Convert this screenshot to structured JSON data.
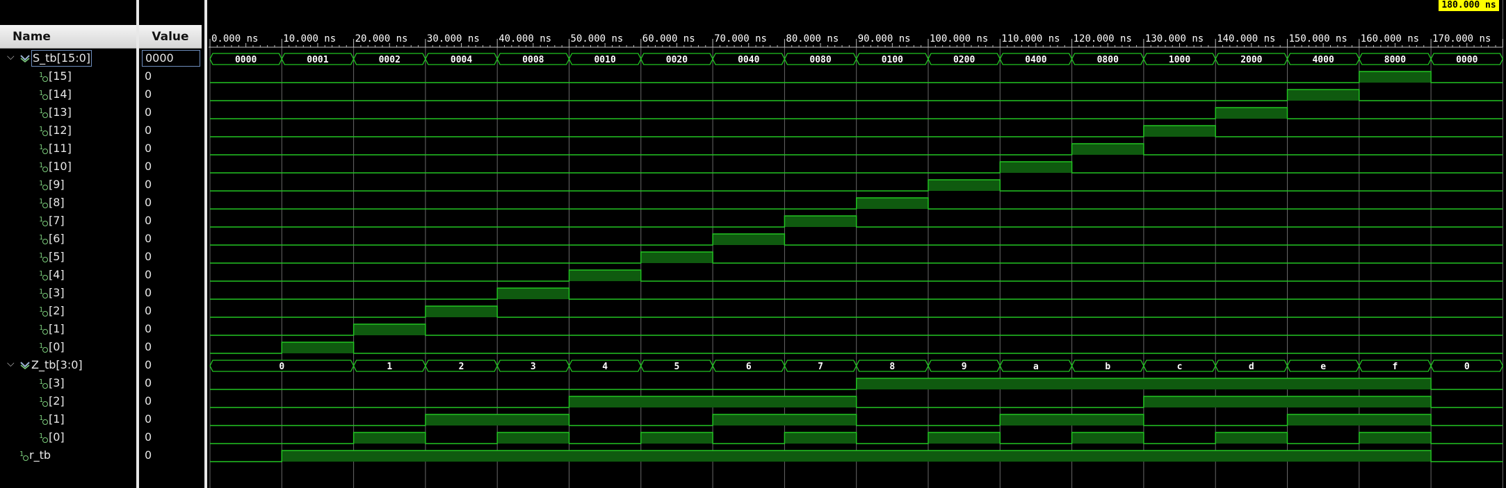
{
  "header": {
    "name_col": "Name",
    "value_col": "Value"
  },
  "cursor": {
    "time_label": "180.000 ns",
    "time": 180
  },
  "timeline": {
    "unit": "ns",
    "ticks": [
      "0.000 ns",
      "10.000 ns",
      "20.000 ns",
      "30.000 ns",
      "40.000 ns",
      "50.000 ns",
      "60.000 ns",
      "70.000 ns",
      "80.000 ns",
      "90.000 ns",
      "100.000 ns",
      "110.000 ns",
      "120.000 ns",
      "130.000 ns",
      "140.000 ns",
      "150.000 ns",
      "160.000 ns",
      "170.000 ns"
    ],
    "tick_times": [
      0,
      10,
      20,
      30,
      40,
      50,
      60,
      70,
      80,
      90,
      100,
      110,
      120,
      130,
      140,
      150,
      160,
      170
    ]
  },
  "colors": {
    "wave": "#22c622",
    "wave_fill": "#0f5a0f",
    "grid": "#bfbfbf",
    "bus_text": "#ffffff",
    "cursor": "#ffff00"
  },
  "signals": [
    {
      "id": "S_tb",
      "label": "S_tb[15:0]",
      "type": "bus",
      "value": "0000",
      "expanded": true,
      "indent": 0,
      "icon": "bus-icon",
      "segments": [
        {
          "start": 0,
          "end": 10,
          "text": "0000"
        },
        {
          "start": 10,
          "end": 20,
          "text": "0001"
        },
        {
          "start": 20,
          "end": 30,
          "text": "0002"
        },
        {
          "start": 30,
          "end": 40,
          "text": "0004"
        },
        {
          "start": 40,
          "end": 50,
          "text": "0008"
        },
        {
          "start": 50,
          "end": 60,
          "text": "0010"
        },
        {
          "start": 60,
          "end": 70,
          "text": "0020"
        },
        {
          "start": 70,
          "end": 80,
          "text": "0040"
        },
        {
          "start": 80,
          "end": 90,
          "text": "0080"
        },
        {
          "start": 90,
          "end": 100,
          "text": "0100"
        },
        {
          "start": 100,
          "end": 110,
          "text": "0200"
        },
        {
          "start": 110,
          "end": 120,
          "text": "0400"
        },
        {
          "start": 120,
          "end": 130,
          "text": "0800"
        },
        {
          "start": 130,
          "end": 140,
          "text": "1000"
        },
        {
          "start": 140,
          "end": 150,
          "text": "2000"
        },
        {
          "start": 150,
          "end": 160,
          "text": "4000"
        },
        {
          "start": 160,
          "end": 170,
          "text": "8000"
        },
        {
          "start": 170,
          "end": 180,
          "text": "0000"
        }
      ]
    },
    {
      "label": "[15]",
      "type": "bit",
      "value": "0",
      "indent": 1,
      "icon": "bit-icon",
      "high": [
        [
          160,
          170
        ]
      ]
    },
    {
      "label": "[14]",
      "type": "bit",
      "value": "0",
      "indent": 1,
      "icon": "bit-icon",
      "high": [
        [
          150,
          160
        ]
      ]
    },
    {
      "label": "[13]",
      "type": "bit",
      "value": "0",
      "indent": 1,
      "icon": "bit-icon",
      "high": [
        [
          140,
          150
        ]
      ]
    },
    {
      "label": "[12]",
      "type": "bit",
      "value": "0",
      "indent": 1,
      "icon": "bit-icon",
      "high": [
        [
          130,
          140
        ]
      ]
    },
    {
      "label": "[11]",
      "type": "bit",
      "value": "0",
      "indent": 1,
      "icon": "bit-icon",
      "high": [
        [
          120,
          130
        ]
      ]
    },
    {
      "label": "[10]",
      "type": "bit",
      "value": "0",
      "indent": 1,
      "icon": "bit-icon",
      "high": [
        [
          110,
          120
        ]
      ]
    },
    {
      "label": "[9]",
      "type": "bit",
      "value": "0",
      "indent": 1,
      "icon": "bit-icon",
      "high": [
        [
          100,
          110
        ]
      ]
    },
    {
      "label": "[8]",
      "type": "bit",
      "value": "0",
      "indent": 1,
      "icon": "bit-icon",
      "high": [
        [
          90,
          100
        ]
      ]
    },
    {
      "label": "[7]",
      "type": "bit",
      "value": "0",
      "indent": 1,
      "icon": "bit-icon",
      "high": [
        [
          80,
          90
        ]
      ]
    },
    {
      "label": "[6]",
      "type": "bit",
      "value": "0",
      "indent": 1,
      "icon": "bit-icon",
      "high": [
        [
          70,
          80
        ]
      ]
    },
    {
      "label": "[5]",
      "type": "bit",
      "value": "0",
      "indent": 1,
      "icon": "bit-icon",
      "high": [
        [
          60,
          70
        ]
      ]
    },
    {
      "label": "[4]",
      "type": "bit",
      "value": "0",
      "indent": 1,
      "icon": "bit-icon",
      "high": [
        [
          50,
          60
        ]
      ]
    },
    {
      "label": "[3]",
      "type": "bit",
      "value": "0",
      "indent": 1,
      "icon": "bit-icon",
      "high": [
        [
          40,
          50
        ]
      ]
    },
    {
      "label": "[2]",
      "type": "bit",
      "value": "0",
      "indent": 1,
      "icon": "bit-icon",
      "high": [
        [
          30,
          40
        ]
      ]
    },
    {
      "label": "[1]",
      "type": "bit",
      "value": "0",
      "indent": 1,
      "icon": "bit-icon",
      "high": [
        [
          20,
          30
        ]
      ]
    },
    {
      "label": "[0]",
      "type": "bit",
      "value": "0",
      "indent": 1,
      "icon": "bit-icon",
      "high": [
        [
          10,
          20
        ]
      ]
    },
    {
      "id": "Z_tb",
      "label": "Z_tb[3:0]",
      "type": "bus",
      "value": "0",
      "expanded": true,
      "indent": 0,
      "icon": "bus-icon",
      "segments": [
        {
          "start": 0,
          "end": 20,
          "text": "0"
        },
        {
          "start": 20,
          "end": 30,
          "text": "1"
        },
        {
          "start": 30,
          "end": 40,
          "text": "2"
        },
        {
          "start": 40,
          "end": 50,
          "text": "3"
        },
        {
          "start": 50,
          "end": 60,
          "text": "4"
        },
        {
          "start": 60,
          "end": 70,
          "text": "5"
        },
        {
          "start": 70,
          "end": 80,
          "text": "6"
        },
        {
          "start": 80,
          "end": 90,
          "text": "7"
        },
        {
          "start": 90,
          "end": 100,
          "text": "8"
        },
        {
          "start": 100,
          "end": 110,
          "text": "9"
        },
        {
          "start": 110,
          "end": 120,
          "text": "a"
        },
        {
          "start": 120,
          "end": 130,
          "text": "b"
        },
        {
          "start": 130,
          "end": 140,
          "text": "c"
        },
        {
          "start": 140,
          "end": 150,
          "text": "d"
        },
        {
          "start": 150,
          "end": 160,
          "text": "e"
        },
        {
          "start": 160,
          "end": 170,
          "text": "f"
        },
        {
          "start": 170,
          "end": 180,
          "text": "0"
        }
      ]
    },
    {
      "label": "[3]",
      "type": "bit",
      "value": "0",
      "indent": 1,
      "icon": "bit-icon",
      "high": [
        [
          90,
          170
        ]
      ]
    },
    {
      "label": "[2]",
      "type": "bit",
      "value": "0",
      "indent": 1,
      "icon": "bit-icon",
      "high": [
        [
          50,
          90
        ],
        [
          130,
          170
        ]
      ]
    },
    {
      "label": "[1]",
      "type": "bit",
      "value": "0",
      "indent": 1,
      "icon": "bit-icon",
      "high": [
        [
          30,
          50
        ],
        [
          70,
          90
        ],
        [
          110,
          130
        ],
        [
          150,
          170
        ]
      ]
    },
    {
      "label": "[0]",
      "type": "bit",
      "value": "0",
      "indent": 1,
      "icon": "bit-icon",
      "high": [
        [
          20,
          30
        ],
        [
          40,
          50
        ],
        [
          60,
          70
        ],
        [
          80,
          90
        ],
        [
          100,
          110
        ],
        [
          120,
          130
        ],
        [
          140,
          150
        ],
        [
          160,
          170
        ]
      ]
    },
    {
      "label": "r_tb",
      "type": "bit",
      "value": "0",
      "indent": 0,
      "icon": "bit-icon",
      "high": [
        [
          10,
          170
        ]
      ]
    }
  ]
}
